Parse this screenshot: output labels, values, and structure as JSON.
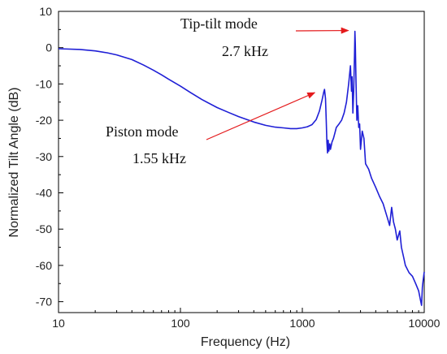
{
  "chart_data": {
    "type": "line",
    "xlabel": "Frequency (Hz)",
    "ylabel": "Normalized Tilt Angle (dB)",
    "x_scale": "log",
    "xlim": [
      10,
      10000
    ],
    "ylim": [
      -73,
      10
    ],
    "x_ticks": [
      "10",
      "100",
      "1000",
      "10000"
    ],
    "y_ticks": [
      "10",
      "0",
      "-10",
      "-20",
      "-30",
      "-40",
      "-50",
      "-60",
      "-70"
    ],
    "grid": false,
    "legend": "none",
    "series": [
      {
        "color": "#1f1fd6",
        "points": [
          [
            10,
            -0.3
          ],
          [
            15,
            -0.5
          ],
          [
            20,
            -0.9
          ],
          [
            25,
            -1.4
          ],
          [
            30,
            -2.0
          ],
          [
            40,
            -3.3
          ],
          [
            50,
            -4.8
          ],
          [
            60,
            -6.2
          ],
          [
            70,
            -7.5
          ],
          [
            80,
            -8.7
          ],
          [
            100,
            -10.6
          ],
          [
            120,
            -12.3
          ],
          [
            150,
            -14.3
          ],
          [
            200,
            -16.5
          ],
          [
            250,
            -17.9
          ],
          [
            300,
            -19.0
          ],
          [
            400,
            -20.5
          ],
          [
            500,
            -21.4
          ],
          [
            600,
            -21.9
          ],
          [
            700,
            -22.1
          ],
          [
            800,
            -22.3
          ],
          [
            900,
            -22.3
          ],
          [
            1000,
            -22.1
          ],
          [
            1100,
            -21.8
          ],
          [
            1200,
            -21.2
          ],
          [
            1300,
            -19.8
          ],
          [
            1380,
            -17.5
          ],
          [
            1450,
            -14.5
          ],
          [
            1500,
            -12.2
          ],
          [
            1520,
            -11.5
          ],
          [
            1550,
            -14.0
          ],
          [
            1570,
            -20.0
          ],
          [
            1590,
            -26.0
          ],
          [
            1610,
            -29.0
          ],
          [
            1630,
            -25.5
          ],
          [
            1650,
            -28.5
          ],
          [
            1680,
            -26.5
          ],
          [
            1700,
            -28.0
          ],
          [
            1750,
            -26.0
          ],
          [
            1800,
            -25.0
          ],
          [
            1850,
            -23.5
          ],
          [
            1900,
            -22.0
          ],
          [
            2000,
            -21.0
          ],
          [
            2100,
            -20.0
          ],
          [
            2200,
            -18.0
          ],
          [
            2300,
            -15.0
          ],
          [
            2400,
            -10.0
          ],
          [
            2480,
            -5.0
          ],
          [
            2530,
            -12.0
          ],
          [
            2560,
            -8.0
          ],
          [
            2600,
            -18.0
          ],
          [
            2640,
            -12.0
          ],
          [
            2680,
            -2.0
          ],
          [
            2700,
            4.5
          ],
          [
            2720,
            1.0
          ],
          [
            2760,
            -10.0
          ],
          [
            2800,
            -20.0
          ],
          [
            2850,
            -16.0
          ],
          [
            2900,
            -22.0
          ],
          [
            2950,
            -21.0
          ],
          [
            3000,
            -28.0
          ],
          [
            3100,
            -23.0
          ],
          [
            3200,
            -25.0
          ],
          [
            3300,
            -32.0
          ],
          [
            3500,
            -33.5
          ],
          [
            3700,
            -36.0
          ],
          [
            4000,
            -38.5
          ],
          [
            4300,
            -41.0
          ],
          [
            4600,
            -43.0
          ],
          [
            5000,
            -47.0
          ],
          [
            5200,
            -49.0
          ],
          [
            5400,
            -44.0
          ],
          [
            5600,
            -48.0
          ],
          [
            5800,
            -50.0
          ],
          [
            6000,
            -53.0
          ],
          [
            6300,
            -50.5
          ],
          [
            6500,
            -55.0
          ],
          [
            6800,
            -58.0
          ],
          [
            7000,
            -60.0
          ],
          [
            7500,
            -62.0
          ],
          [
            8000,
            -63.0
          ],
          [
            8500,
            -65.0
          ],
          [
            9000,
            -67.0
          ],
          [
            9300,
            -69.5
          ],
          [
            9500,
            -71.0
          ],
          [
            9650,
            -66.0
          ],
          [
            9800,
            -64.0
          ],
          [
            10000,
            -61.8
          ]
        ]
      }
    ],
    "annotations": [
      {
        "text": "Tip-tilt mode",
        "value": "2.7 kHz",
        "target": [
          2700,
          4.5
        ]
      },
      {
        "text": "Piston mode",
        "value": "1.55 kHz",
        "target": [
          1520,
          -11.5
        ]
      }
    ],
    "annotation_color": "#e41a1c"
  }
}
